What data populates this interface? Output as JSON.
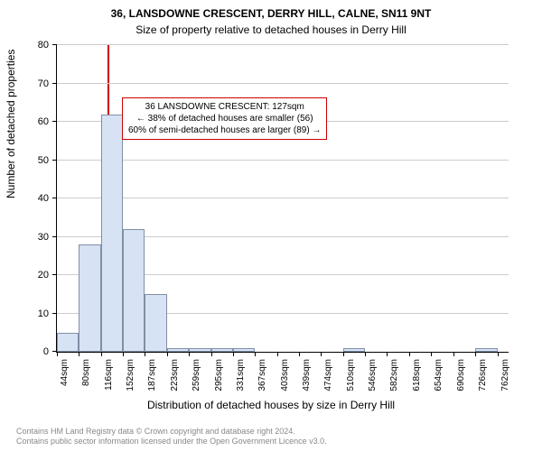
{
  "title_line1": "36, LANSDOWNE CRESCENT, DERRY HILL, CALNE, SN11 9NT",
  "title_line2": "Size of property relative to detached houses in Derry Hill",
  "ylabel": "Number of detached properties",
  "xlabel": "Distribution of detached houses by size in Derry Hill",
  "annotation": {
    "line1": "36 LANSDOWNE CRESCENT: 127sqm",
    "line2": "← 38% of detached houses are smaller (56)",
    "line3": "60% of semi-detached houses are larger (89) →"
  },
  "footer": {
    "line1": "Contains HM Land Registry data © Crown copyright and database right 2024.",
    "line2": "Contains public sector information licensed under the Open Government Licence v3.0."
  },
  "chart": {
    "type": "histogram",
    "background_color": "#ffffff",
    "grid_color": "#cccccc",
    "bar_fill": "#d7e3f4",
    "bar_border": "#7f8fa6",
    "marker_color": "#cc0000",
    "marker_x": 127,
    "ylim": [
      0,
      80
    ],
    "ytick_step": 10,
    "xlim": [
      44,
      780
    ],
    "xticks": [
      44,
      80,
      116,
      152,
      187,
      223,
      259,
      295,
      331,
      367,
      403,
      439,
      474,
      510,
      546,
      582,
      618,
      654,
      690,
      726,
      762
    ],
    "xtick_suffix": "sqm",
    "label_fontsize": 12,
    "tick_fontsize": 10,
    "bars": [
      {
        "x0": 44,
        "x1": 80,
        "y": 5
      },
      {
        "x0": 80,
        "x1": 116,
        "y": 28
      },
      {
        "x0": 116,
        "x1": 152,
        "y": 62
      },
      {
        "x0": 152,
        "x1": 187,
        "y": 32
      },
      {
        "x0": 187,
        "x1": 223,
        "y": 15
      },
      {
        "x0": 223,
        "x1": 259,
        "y": 1
      },
      {
        "x0": 259,
        "x1": 295,
        "y": 1
      },
      {
        "x0": 295,
        "x1": 331,
        "y": 1
      },
      {
        "x0": 331,
        "x1": 367,
        "y": 1
      },
      {
        "x0": 510,
        "x1": 546,
        "y": 1
      },
      {
        "x0": 726,
        "x1": 762,
        "y": 1
      }
    ]
  }
}
